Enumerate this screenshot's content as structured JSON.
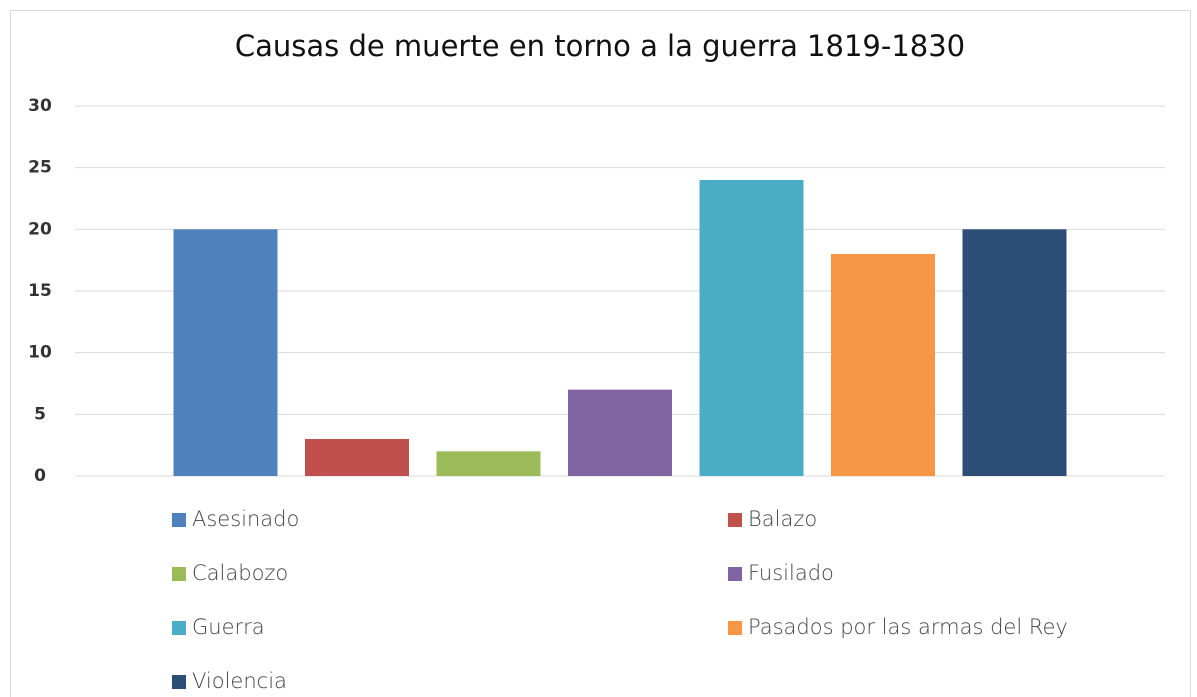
{
  "chart_data": {
    "type": "bar",
    "title": "Causas de muerte en torno a la guerra 1819-1830",
    "categories": [
      null
    ],
    "series": [
      {
        "name": "Asesinado",
        "color": "#4f81bd",
        "values": [
          20
        ]
      },
      {
        "name": "Balazo",
        "color": "#c0504d",
        "values": [
          3
        ]
      },
      {
        "name": "Calabozo",
        "color": "#9bbb59",
        "values": [
          2
        ]
      },
      {
        "name": "Fusilado",
        "color": "#8064a2",
        "values": [
          7
        ]
      },
      {
        "name": "Guerra",
        "color": "#4bacc6",
        "values": [
          24
        ]
      },
      {
        "name": "Pasados por las armas del Rey",
        "color": "#f79646",
        "values": [
          18
        ]
      },
      {
        "name": "Violencia",
        "color": "#2c4d75",
        "values": [
          20
        ]
      }
    ],
    "ylim": [
      0,
      30
    ],
    "yticks": [
      0,
      5,
      10,
      15,
      20,
      25,
      30
    ],
    "grid": true,
    "legend": "bottom"
  }
}
